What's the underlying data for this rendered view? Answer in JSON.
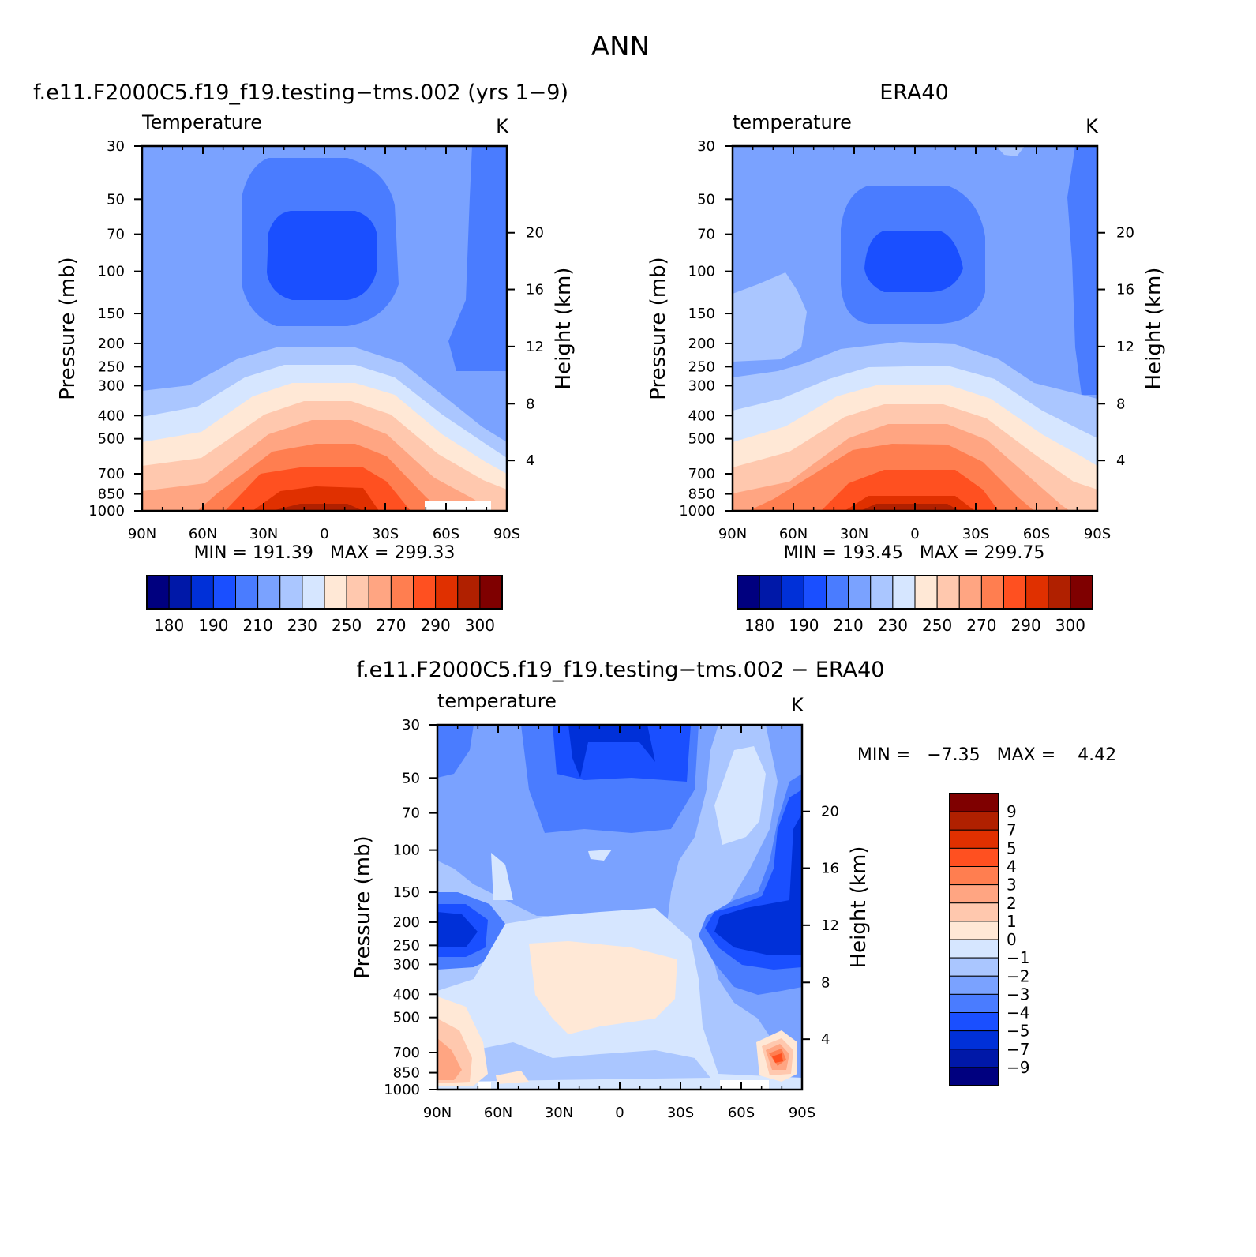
{
  "figure": {
    "title": "ANN",
    "left_subtitle": "f.e11.F2000C5.f19_f19.testing−tms.002 (yrs 1−9)",
    "right_subtitle": "ERA40",
    "diff_subtitle": "f.e11.F2000C5.f19_f19.testing−tms.002 − ERA40"
  },
  "panels": [
    {
      "name": "Temperature",
      "units": "K",
      "min_label": "MIN",
      "min_value": "191.39",
      "max_label": "MAX",
      "max_value": "299.33"
    },
    {
      "name": "temperature",
      "units": "K",
      "min_label": "MIN",
      "min_value": "193.45",
      "max_label": "MAX",
      "max_value": "299.75"
    },
    {
      "name": "temperature",
      "units": "K",
      "min_label": "MIN",
      "min_value": "−7.35",
      "max_label": "MAX",
      "max_value": "4.42"
    }
  ],
  "chart_data": {
    "type": "heatmap",
    "x_ticks": [
      "90N",
      "60N",
      "30N",
      "0",
      "30S",
      "60S",
      "90S"
    ],
    "x_values": [
      90,
      60,
      30,
      0,
      -30,
      -60,
      -90
    ],
    "y_ticks": [
      "30",
      "50",
      "70",
      "100",
      "150",
      "200",
      "250",
      "300",
      "400",
      "500",
      "700",
      "850",
      "1000"
    ],
    "y_values": [
      30,
      50,
      70,
      100,
      150,
      200,
      250,
      300,
      400,
      500,
      700,
      850,
      1000
    ],
    "y_scale": "log",
    "ylim": [
      1000,
      30
    ],
    "ylabel": "Pressure (mb)",
    "y2label": "Height (km)",
    "height_ticks": [
      "4",
      "8",
      "12",
      "16",
      "20"
    ],
    "height_pressure": [
      616,
      357,
      206,
      119,
      69
    ],
    "abs_colorbar": {
      "orientation": "horizontal",
      "labels": [
        "180",
        "190",
        "210",
        "230",
        "250",
        "270",
        "290",
        "300"
      ],
      "colors": [
        "#00007f",
        "#0018a8",
        "#0030d8",
        "#1a4fff",
        "#4a7cff",
        "#7aa2ff",
        "#aac6ff",
        "#d6e6ff",
        "#ffe8d6",
        "#ffc8ae",
        "#ffa582",
        "#ff7e50",
        "#ff5020",
        "#e03000",
        "#b02000",
        "#7f0000"
      ]
    },
    "diff_colorbar": {
      "orientation": "vertical",
      "labels": [
        "9",
        "7",
        "5",
        "4",
        "3",
        "2",
        "1",
        "0",
        "−1",
        "−2",
        "−3",
        "−4",
        "−5",
        "−7",
        "−9"
      ],
      "colors": [
        "#7f0000",
        "#b02000",
        "#e03000",
        "#ff5020",
        "#ff7e50",
        "#ffa582",
        "#ffc8ae",
        "#ffe8d6",
        "#d6e6ff",
        "#aac6ff",
        "#7aa2ff",
        "#4a7cff",
        "#1a4fff",
        "#0030d8",
        "#0018a8",
        "#00007f"
      ]
    },
    "model_shading_upper_air": "#7aa2ff",
    "model_shading_min_region": "#1a4fff",
    "obs_shading_min_region": "#1a4fff"
  }
}
